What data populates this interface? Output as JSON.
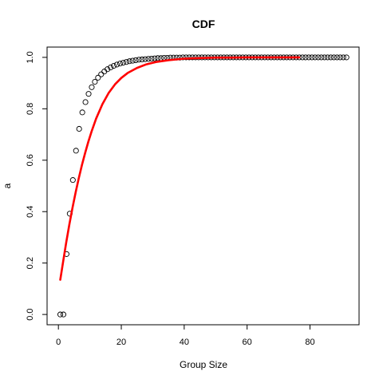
{
  "chart_data": {
    "type": "scatter",
    "title": "CDF",
    "xlabel": "Group Size",
    "ylabel": "a",
    "xlim": [
      -3.6,
      95.6
    ],
    "ylim": [
      -0.04,
      1.04
    ],
    "x_ticks": [
      0,
      20,
      40,
      60,
      80
    ],
    "y_ticks": [
      0.0,
      0.2,
      0.4,
      0.6,
      0.8,
      1.0
    ],
    "grid": false,
    "legend": "none",
    "series": [
      {
        "kind": "points",
        "marker": "open-circle",
        "color": "#000000",
        "x": [
          0.6,
          1.6,
          2.6,
          3.6,
          4.6,
          5.6,
          6.6,
          7.6,
          8.6,
          9.6,
          10.6,
          11.6,
          12.6,
          13.6,
          14.6,
          15.6,
          16.6,
          17.6,
          18.6,
          19.6,
          20.6,
          21.6,
          22.6,
          23.6,
          24.6,
          25.6,
          26.6,
          27.6,
          28.6,
          29.6,
          30.6,
          31.6,
          32.6,
          33.6,
          34.6,
          35.6,
          36.6,
          37.6,
          38.6,
          39.6,
          40.6,
          41.6,
          42.6,
          43.6,
          44.6,
          45.6,
          46.6,
          47.6,
          48.6,
          49.6,
          50.6,
          51.6,
          52.6,
          53.6,
          54.6,
          55.6,
          56.6,
          57.6,
          58.6,
          59.6,
          60.6,
          61.6,
          62.6,
          63.6,
          64.6,
          65.6,
          66.6,
          67.6,
          68.6,
          69.6,
          70.6,
          71.6,
          72.6,
          73.6,
          74.6,
          75.6,
          76.6,
          77.6,
          78.6,
          79.6,
          80.6,
          81.6,
          82.6,
          83.6,
          84.6,
          85.6,
          86.6,
          87.6,
          88.6,
          89.6,
          90.6,
          91.6
        ],
        "y": [
          0.0,
          0.0,
          0.235,
          0.392,
          0.523,
          0.637,
          0.722,
          0.786,
          0.826,
          0.858,
          0.884,
          0.905,
          0.921,
          0.934,
          0.945,
          0.954,
          0.961,
          0.967,
          0.972,
          0.976,
          0.979,
          0.982,
          0.985,
          0.987,
          0.989,
          0.991,
          0.992,
          0.993,
          0.994,
          0.995,
          0.996,
          0.997,
          0.997,
          0.998,
          0.998,
          0.999,
          0.999,
          0.999,
          0.999,
          1.0,
          1.0,
          1.0,
          1.0,
          1.0,
          1.0,
          1.0,
          1.0,
          1.0,
          1.0,
          1.0,
          1.0,
          1.0,
          1.0,
          1.0,
          1.0,
          1.0,
          1.0,
          1.0,
          1.0,
          1.0,
          1.0,
          1.0,
          1.0,
          1.0,
          1.0,
          1.0,
          1.0,
          1.0,
          1.0,
          1.0,
          1.0,
          1.0,
          1.0,
          1.0,
          1.0,
          1.0,
          1.0,
          1.0,
          1.0,
          1.0,
          1.0,
          1.0,
          1.0,
          1.0,
          1.0,
          1.0,
          1.0,
          1.0,
          1.0,
          1.0,
          1.0,
          1.0
        ]
      },
      {
        "kind": "line",
        "color": "#ff0000",
        "x": [
          0.6,
          1.5,
          2.5,
          3.5,
          4.5,
          5.5,
          6.5,
          7.5,
          8.5,
          9.5,
          10.5,
          12,
          14,
          16,
          18,
          20,
          22,
          25,
          28,
          31,
          35,
          40,
          45,
          50,
          55,
          60,
          65,
          70,
          75,
          76.6
        ],
        "y": [
          0.135,
          0.205,
          0.281,
          0.351,
          0.416,
          0.476,
          0.531,
          0.582,
          0.628,
          0.671,
          0.71,
          0.762,
          0.818,
          0.862,
          0.895,
          0.92,
          0.939,
          0.959,
          0.973,
          0.982,
          0.989,
          0.995,
          0.997,
          0.999,
          0.999,
          1.0,
          1.0,
          1.0,
          1.0,
          1.0
        ]
      }
    ]
  }
}
